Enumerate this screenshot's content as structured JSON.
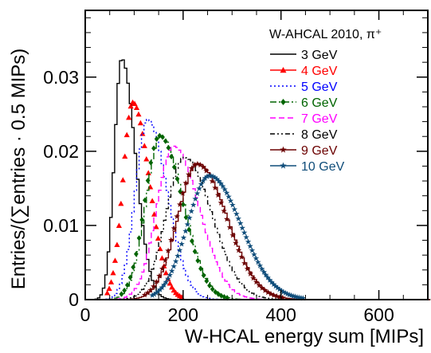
{
  "chart_data": {
    "type": "line",
    "title": "",
    "xlabel": "W-HCAL energy sum [MIPs]",
    "ylabel": "Entries/(∑entries · 0.5 MIPs)",
    "xlim": [
      0,
      700
    ],
    "ylim": [
      0,
      0.039
    ],
    "x_ticks": [
      0,
      200,
      400,
      600
    ],
    "x_tick_labels": [
      "0",
      "200",
      "400",
      "600"
    ],
    "y_ticks": [
      0,
      0.01,
      0.02,
      0.03
    ],
    "y_tick_labels": [
      "0",
      "0.01",
      "0.02",
      "0.03"
    ],
    "grid": false,
    "legend": {
      "position": "top-right",
      "title": "W-AHCAL 2010, π⁺"
    },
    "series": [
      {
        "name": "3 GeV",
        "color": "#000000",
        "style": "solid",
        "marker": "none",
        "peak_x": 72,
        "peak_y": 0.0325,
        "sigma_left": 15,
        "sigma_right": 28
      },
      {
        "name": "4 GeV",
        "color": "#ff0000",
        "style": "markers",
        "marker": "triangle",
        "peak_x": 97,
        "peak_y": 0.0266,
        "sigma_left": 20,
        "sigma_right": 34
      },
      {
        "name": "5 GeV",
        "color": "#0000ff",
        "style": "dotted",
        "marker": "none",
        "peak_x": 125,
        "peak_y": 0.0243,
        "sigma_left": 25,
        "sigma_right": 40
      },
      {
        "name": "6 GeV",
        "color": "#006400",
        "style": "dashdot",
        "marker": "diamond",
        "peak_x": 152,
        "peak_y": 0.0221,
        "sigma_left": 30,
        "sigma_right": 46
      },
      {
        "name": "7 GeV",
        "color": "#ff00ff",
        "style": "dashed",
        "marker": "none",
        "peak_x": 178,
        "peak_y": 0.0207,
        "sigma_left": 34,
        "sigma_right": 52
      },
      {
        "name": "8 GeV",
        "color": "#000000",
        "style": "dashdotdot",
        "marker": "none",
        "peak_x": 200,
        "peak_y": 0.0192,
        "sigma_left": 37,
        "sigma_right": 56
      },
      {
        "name": "9 GeV",
        "color": "#6b0000",
        "style": "solid",
        "marker": "star",
        "peak_x": 228,
        "peak_y": 0.0183,
        "sigma_left": 41,
        "sigma_right": 60
      },
      {
        "name": "10 GeV",
        "color": "#0f4d7a",
        "style": "markers",
        "marker": "star",
        "peak_x": 254,
        "peak_y": 0.0167,
        "sigma_left": 45,
        "sigma_right": 64
      }
    ]
  }
}
